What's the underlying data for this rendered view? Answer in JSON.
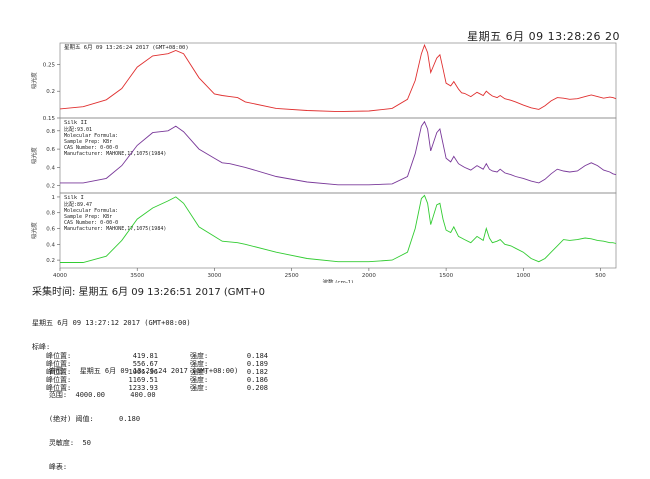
{
  "header": {
    "timestamp": "星期五 6月 09 13:28:26 20"
  },
  "chart_data": [
    {
      "type": "line",
      "title": "星期五 6月 09 13:26:24 2017 (GMT+08:00)",
      "ylabel": "吸光度",
      "yticks": [
        0.15,
        0.2,
        0.25
      ],
      "ylim": [
        0.15,
        0.29
      ],
      "xlim": [
        4000,
        400
      ],
      "color": "#e03030",
      "info_lines": [],
      "series": [
        {
          "x": [
            4000,
            3850,
            3700,
            3600,
            3500,
            3400,
            3300,
            3250,
            3200,
            3100,
            3000,
            2950,
            2900,
            2850,
            2800,
            2600,
            2400,
            2200,
            2000,
            1850,
            1750,
            1700,
            1660,
            1640,
            1620,
            1600,
            1560,
            1540,
            1520,
            1500,
            1470,
            1450,
            1420,
            1400,
            1380,
            1340,
            1300,
            1260,
            1240,
            1220,
            1200,
            1170,
            1150,
            1120,
            1080,
            1050,
            1000,
            950,
            900,
            860,
            820,
            780,
            740,
            700,
            650,
            600,
            560,
            520,
            480,
            440,
            420,
            400
          ],
          "y": [
            0.167,
            0.171,
            0.184,
            0.205,
            0.245,
            0.266,
            0.27,
            0.276,
            0.27,
            0.225,
            0.195,
            0.192,
            0.19,
            0.188,
            0.18,
            0.168,
            0.164,
            0.162,
            0.163,
            0.168,
            0.185,
            0.22,
            0.27,
            0.286,
            0.272,
            0.235,
            0.262,
            0.268,
            0.242,
            0.215,
            0.21,
            0.218,
            0.204,
            0.197,
            0.196,
            0.19,
            0.198,
            0.192,
            0.2,
            0.195,
            0.191,
            0.188,
            0.192,
            0.186,
            0.183,
            0.18,
            0.174,
            0.169,
            0.166,
            0.173,
            0.182,
            0.188,
            0.187,
            0.185,
            0.186,
            0.19,
            0.193,
            0.19,
            0.187,
            0.189,
            0.188,
            0.186
          ]
        }
      ]
    },
    {
      "type": "line",
      "title": "Silk II",
      "ylabel": "吸光度",
      "yticks": [
        0.2,
        0.4,
        0.6,
        0.8
      ],
      "ylim": [
        0.12,
        0.94
      ],
      "xlim": [
        4000,
        400
      ],
      "color": "#7a3a9a",
      "info_lines": [
        "比配:93.01",
        "Molecular Formula:",
        "Sample Prep: KBr",
        "CAS Number:      0-00-0",
        "Manufacturer: MAHONE,17,1075(1984)"
      ],
      "series": [
        {
          "x": [
            4000,
            3850,
            3700,
            3600,
            3500,
            3400,
            3300,
            3250,
            3200,
            3100,
            3000,
            2950,
            2900,
            2850,
            2800,
            2600,
            2400,
            2200,
            2000,
            1850,
            1750,
            1700,
            1660,
            1640,
            1620,
            1600,
            1560,
            1540,
            1520,
            1500,
            1470,
            1450,
            1420,
            1400,
            1380,
            1340,
            1300,
            1260,
            1240,
            1220,
            1200,
            1170,
            1150,
            1120,
            1080,
            1050,
            1000,
            950,
            900,
            860,
            820,
            780,
            740,
            700,
            650,
            600,
            560,
            520,
            480,
            440,
            420,
            400
          ],
          "y": [
            0.23,
            0.23,
            0.28,
            0.42,
            0.64,
            0.78,
            0.8,
            0.85,
            0.79,
            0.6,
            0.5,
            0.45,
            0.44,
            0.42,
            0.4,
            0.3,
            0.24,
            0.21,
            0.21,
            0.22,
            0.3,
            0.55,
            0.85,
            0.9,
            0.82,
            0.58,
            0.78,
            0.82,
            0.66,
            0.5,
            0.46,
            0.52,
            0.44,
            0.42,
            0.4,
            0.37,
            0.42,
            0.38,
            0.44,
            0.38,
            0.36,
            0.35,
            0.38,
            0.34,
            0.32,
            0.3,
            0.28,
            0.25,
            0.23,
            0.27,
            0.33,
            0.38,
            0.36,
            0.35,
            0.36,
            0.42,
            0.45,
            0.42,
            0.37,
            0.35,
            0.33,
            0.32
          ]
        }
      ]
    },
    {
      "type": "line",
      "title": "Silk I",
      "ylabel": "吸光度",
      "yticks": [
        0.2,
        0.4,
        0.6,
        0.8,
        1.0
      ],
      "ylim": [
        0.1,
        1.05
      ],
      "xlim": [
        4000,
        400
      ],
      "color": "#33cc33",
      "info_lines": [
        "比配:89.47",
        "Molecular Formula:",
        "Sample Prep: KBr",
        "CAS Number:      0-00-0",
        "Manufacturer: MAHONE,17,1075(1984)"
      ],
      "series": [
        {
          "x": [
            4000,
            3850,
            3700,
            3600,
            3500,
            3400,
            3300,
            3250,
            3200,
            3100,
            3000,
            2950,
            2900,
            2850,
            2800,
            2600,
            2400,
            2200,
            2000,
            1850,
            1750,
            1700,
            1660,
            1640,
            1620,
            1600,
            1560,
            1540,
            1520,
            1500,
            1470,
            1450,
            1420,
            1400,
            1380,
            1340,
            1300,
            1260,
            1240,
            1220,
            1200,
            1170,
            1150,
            1120,
            1080,
            1050,
            1000,
            950,
            900,
            860,
            820,
            780,
            740,
            700,
            650,
            600,
            560,
            520,
            480,
            440,
            420,
            400
          ],
          "y": [
            0.17,
            0.17,
            0.25,
            0.45,
            0.72,
            0.86,
            0.95,
            1.0,
            0.92,
            0.62,
            0.5,
            0.44,
            0.43,
            0.42,
            0.4,
            0.3,
            0.22,
            0.18,
            0.18,
            0.2,
            0.3,
            0.6,
            0.98,
            1.02,
            0.92,
            0.65,
            0.9,
            0.92,
            0.72,
            0.58,
            0.55,
            0.62,
            0.5,
            0.48,
            0.46,
            0.42,
            0.5,
            0.45,
            0.6,
            0.48,
            0.42,
            0.44,
            0.46,
            0.4,
            0.38,
            0.35,
            0.3,
            0.22,
            0.18,
            0.22,
            0.3,
            0.38,
            0.46,
            0.45,
            0.46,
            0.48,
            0.47,
            0.45,
            0.44,
            0.42,
            0.42,
            0.41
          ]
        }
      ]
    }
  ],
  "x_axis": {
    "label": "波数 (cm-1)",
    "ticks": [
      4000,
      3500,
      3000,
      2500,
      2000,
      1500,
      1000,
      500
    ]
  },
  "acquisition": {
    "label": "采集时间: 星期五 6月 09 13:26:51 2017 (GMT+0"
  },
  "report": {
    "lines": [
      "星期五 6月 09 13:27:12 2017 (GMT+08:00)",
      "标峰:",
      "    谱图:   星期五 6月 09 13:26:24 2017 (GMT+08:00)",
      "    范围:  4000.00      400.00",
      "    (绝对) 阈值:      0.180",
      "    灵敏度:  50",
      "    峰表:"
    ],
    "peaks": [
      {
        "label": "峰位置:",
        "pos": "419.81",
        "ilabel": "强度:",
        "intensity": "0.184"
      },
      {
        "label": "峰位置:",
        "pos": "556.67",
        "ilabel": "强度:",
        "intensity": "0.189"
      },
      {
        "label": "峰位置:",
        "pos": "1066.36",
        "ilabel": "强度:",
        "intensity": "0.182"
      },
      {
        "label": "峰位置:",
        "pos": "1169.51",
        "ilabel": "强度:",
        "intensity": "0.186"
      },
      {
        "label": "峰位置:",
        "pos": "1233.93",
        "ilabel": "强度:",
        "intensity": "0.208"
      }
    ]
  }
}
